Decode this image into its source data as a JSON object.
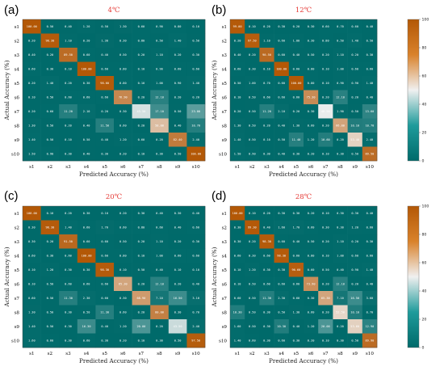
{
  "colors": {
    "low": "#006a6a",
    "mid": "#f0f0f0",
    "high": "#b35806",
    "title": "#e53935"
  },
  "colorbar": {
    "ticks": [
      "100",
      "80",
      "60",
      "40",
      "20",
      "0"
    ]
  },
  "chart_data": [
    {
      "type": "heatmap",
      "panel": "(a)",
      "title": "4℃",
      "xlabel": "Predicted Accuracy (%)",
      "ylabel": "Actual Accuracy (%)",
      "categories": [
        "s1",
        "s2",
        "s3",
        "s4",
        "s5",
        "s6",
        "s7",
        "s8",
        "s9",
        "s10"
      ],
      "zlim": [
        0,
        100
      ],
      "values": [
        [
          100,
          0.5,
          0.4,
          1.2,
          0.5,
          1.3,
          0.6,
          0.9,
          0.8,
          0.1
        ],
        [
          0.2,
          98.3,
          1.1,
          0.2,
          1.3,
          0.3,
          0.8,
          0.5,
          1.4,
          0.5
        ],
        [
          0.4,
          0.2,
          89.5,
          0.6,
          0.4,
          0.5,
          0.2,
          1.1,
          0.2,
          0.3
        ],
        [
          0.6,
          0.3,
          0.1,
          100,
          0.6,
          0.8,
          0.1,
          0.9,
          0.6,
          0.6
        ],
        [
          0.2,
          1.4,
          0.2,
          0.3,
          98.6,
          0.8,
          0.1,
          1.0,
          0.9,
          1.4
        ],
        [
          0.1,
          0.5,
          0.6,
          0.6,
          0.6,
          76.9,
          0.2,
          12.1,
          0.2,
          0.2
        ],
        [
          0.2,
          0.6,
          11.2,
          2.1,
          0.2,
          0.3,
          45.5,
          17.1,
          0.5,
          23.0
        ],
        [
          1.3,
          0.5,
          0.2,
          0.4,
          11.5,
          0.6,
          0.2,
          58.0,
          0.4,
          10.7
        ],
        [
          1.4,
          0.5,
          0.1,
          0.5,
          0.4,
          1.2,
          0.6,
          0.2,
          82.4,
          2.4
        ],
        [
          1.5,
          0.9,
          0.3,
          0.4,
          0.3,
          0.2,
          0.1,
          0.3,
          0.5,
          100
        ]
      ]
    },
    {
      "type": "heatmap",
      "panel": "(b)",
      "title": "12℃",
      "xlabel": "Predicted Accuracy (%)",
      "ylabel": "Actual Accuracy (%)",
      "categories": [
        "s1",
        "s2",
        "s3",
        "s4",
        "s5",
        "s6",
        "s7",
        "s8",
        "s9",
        "s10"
      ],
      "zlim": [
        0,
        100
      ],
      "values": [
        [
          99.0,
          0.1,
          0.2,
          0.3,
          0.2,
          0.3,
          0.6,
          0.7,
          0.6,
          0.4
        ],
        [
          0.2,
          97.5,
          1.1,
          0.6,
          1.0,
          0.3,
          0.8,
          0.5,
          1.4,
          0.5
        ],
        [
          0.4,
          0.2,
          90.5,
          0.6,
          0.4,
          0.5,
          0.2,
          1.1,
          0.2,
          0.3
        ],
        [
          0.6,
          0.3,
          0.1,
          100,
          0.6,
          0.8,
          0.1,
          1.0,
          0.6,
          0.6
        ],
        [
          0.5,
          1.0,
          0.7,
          0.6,
          100,
          0.8,
          0.1,
          0.9,
          0.9,
          1.4
        ],
        [
          0.1,
          0.5,
          0.6,
          0.6,
          0.6,
          75.3,
          0.2,
          12.1,
          0.2,
          0.4
        ],
        [
          0.2,
          0.5,
          11.2,
          2.1,
          0.2,
          0.3,
          48.9,
          1.9,
          0.5,
          13.6
        ],
        [
          1.3,
          0.5,
          0.2,
          0.4,
          1.3,
          0.6,
          0.2,
          66.0,
          10.1,
          10.7
        ],
        [
          1.4,
          0.5,
          0.1,
          0.5,
          11.4,
          1.2,
          10.6,
          0.2,
          53.4,
          2.4
        ],
        [
          1.5,
          0.9,
          0.3,
          0.4,
          0.3,
          0.2,
          0.1,
          0.3,
          0.5,
          89.5
        ]
      ]
    },
    {
      "type": "heatmap",
      "panel": "(c)",
      "title": "20℃",
      "xlabel": "Predicted Accuracy (%)",
      "ylabel": "Actual Accuracy (%)",
      "categories": [
        "s1",
        "s2",
        "s3",
        "s4",
        "s5",
        "s6",
        "s7",
        "s8",
        "s9",
        "s10"
      ],
      "zlim": [
        0,
        100
      ],
      "values": [
        [
          100,
          0.1,
          0.2,
          0.3,
          0.1,
          0.2,
          0.3,
          0.4,
          0.3,
          0.4
        ],
        [
          0.3,
          98.3,
          1.4,
          0.6,
          1.7,
          0.6,
          0.8,
          0.6,
          0.4,
          0.6
        ],
        [
          0.3,
          0.2,
          91.5,
          0.6,
          0.6,
          0.5,
          0.2,
          1.1,
          0.2,
          0.3
        ],
        [
          0.6,
          0.3,
          0.6,
          100,
          0.6,
          0.8,
          0.1,
          1.0,
          0.6,
          0.6
        ],
        [
          0.1,
          1.2,
          0.3,
          0.3,
          98.3,
          0.1,
          0.5,
          0.4,
          0.1,
          0.1
        ],
        [
          0.1,
          0.5,
          0.6,
          0.6,
          0.6,
          65.3,
          0.2,
          12.1,
          0.2,
          0.4
        ],
        [
          0.6,
          0.5,
          11.3,
          2.3,
          0.6,
          0.3,
          68.9,
          7.1,
          16.5,
          3.1
        ],
        [
          1.3,
          0.5,
          0.3,
          0.5,
          11.3,
          0.6,
          0.2,
          80.0,
          0.3,
          0.7
        ],
        [
          1.4,
          0.5,
          0.3,
          16.3,
          0.4,
          1.2,
          20.0,
          0.2,
          43.5,
          2.4
        ],
        [
          1.6,
          0.6,
          0.3,
          0.6,
          0.3,
          0.2,
          0.1,
          0.3,
          0.5,
          97.5
        ]
      ]
    },
    {
      "type": "heatmap",
      "panel": "(d)",
      "title": "28℃",
      "xlabel": "Predicted Accuracy (%)",
      "ylabel": "Actual Accuracy (%)",
      "categories": [
        "s1",
        "s2",
        "s3",
        "s4",
        "s5",
        "s6",
        "s7",
        "s8",
        "s9",
        "s10"
      ],
      "zlim": [
        0,
        100
      ],
      "values": [
        [
          100,
          0.1,
          0.2,
          0.3,
          0.3,
          0.2,
          0.1,
          0.3,
          0.3,
          0.4
        ],
        [
          0.3,
          99.3,
          0.4,
          1.6,
          1.7,
          0.6,
          0.3,
          0.3,
          1.2,
          0.6
        ],
        [
          0.3,
          0.2,
          98.3,
          0.6,
          0.4,
          0.5,
          0.2,
          1.1,
          0.2,
          0.3
        ],
        [
          0.6,
          0.3,
          0.6,
          98.3,
          0.6,
          0.8,
          0.1,
          1.0,
          0.6,
          0.6
        ],
        [
          0.1,
          1.2,
          0.3,
          0.3,
          96.6,
          0.6,
          0.5,
          0.4,
          0.9,
          1.4
        ],
        [
          0.1,
          0.5,
          0.6,
          0.6,
          0.6,
          73.9,
          0.2,
          12.1,
          0.2,
          0.4
        ],
        [
          0.6,
          0.5,
          11.3,
          2.3,
          0.6,
          0.3,
          65.3,
          7.1,
          16.5,
          3.6
        ],
        [
          10.3,
          0.5,
          0.3,
          0.5,
          1.3,
          0.6,
          0.2,
          52.5,
          10.1,
          0.7
        ],
        [
          1.6,
          0.5,
          0.3,
          10.3,
          0.4,
          1.2,
          20.0,
          0.2,
          53.6,
          12.9
        ],
        [
          1.4,
          0.6,
          0.3,
          0.6,
          0.3,
          0.2,
          0.1,
          0.3,
          0.5,
          89.9
        ]
      ]
    }
  ]
}
